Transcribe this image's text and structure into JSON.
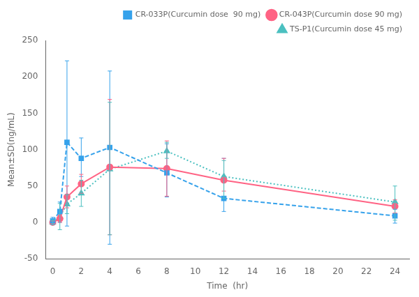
{
  "chart_data": {
    "type": "line",
    "xlabel": "Time  (hr)",
    "ylabel": "Mean±SD(ng/mL)",
    "xlim": [
      -0.5,
      25
    ],
    "ylim": [
      -50,
      250
    ],
    "xticks": [
      0,
      2,
      4,
      6,
      8,
      10,
      12,
      14,
      16,
      18,
      20,
      22,
      24
    ],
    "yticks": [
      -50,
      0,
      50,
      100,
      150,
      200,
      250
    ],
    "x": [
      0,
      0.5,
      1,
      2,
      4,
      8,
      12,
      24
    ],
    "grid": false,
    "legend": "upper right",
    "series": [
      {
        "name": "CR-033P(Curcumin dose  90 mg)",
        "values": [
          2,
          15,
          110,
          88,
          103,
          68,
          33,
          9
        ],
        "error_low": [
          5,
          15,
          115,
          25,
          133,
          33,
          18,
          10
        ],
        "error_high": [
          5,
          13,
          112,
          28,
          105,
          40,
          55,
          9
        ],
        "marker": "square",
        "line_style": "dashed"
      },
      {
        "name": "CR-043P(Curcumin dose 90 mg)",
        "values": [
          0,
          5,
          35,
          53,
          76,
          74,
          58,
          22
        ],
        "error_low": [
          2,
          5,
          15,
          13,
          93,
          38,
          15,
          9
        ],
        "error_high": [
          2,
          5,
          15,
          13,
          93,
          38,
          30,
          9
        ],
        "marker": "circle",
        "line_style": "solid"
      },
      {
        "name": "TS-P1(Curcumin dose 45 mg)",
        "values": [
          0,
          8,
          25,
          40,
          73,
          98,
          63,
          28
        ],
        "error_low": [
          3,
          18,
          13,
          18,
          90,
          10,
          30,
          25
        ],
        "error_high": [
          3,
          18,
          13,
          18,
          92,
          12,
          22,
          22
        ],
        "marker": "triangle",
        "line_style": "dotted"
      }
    ]
  }
}
